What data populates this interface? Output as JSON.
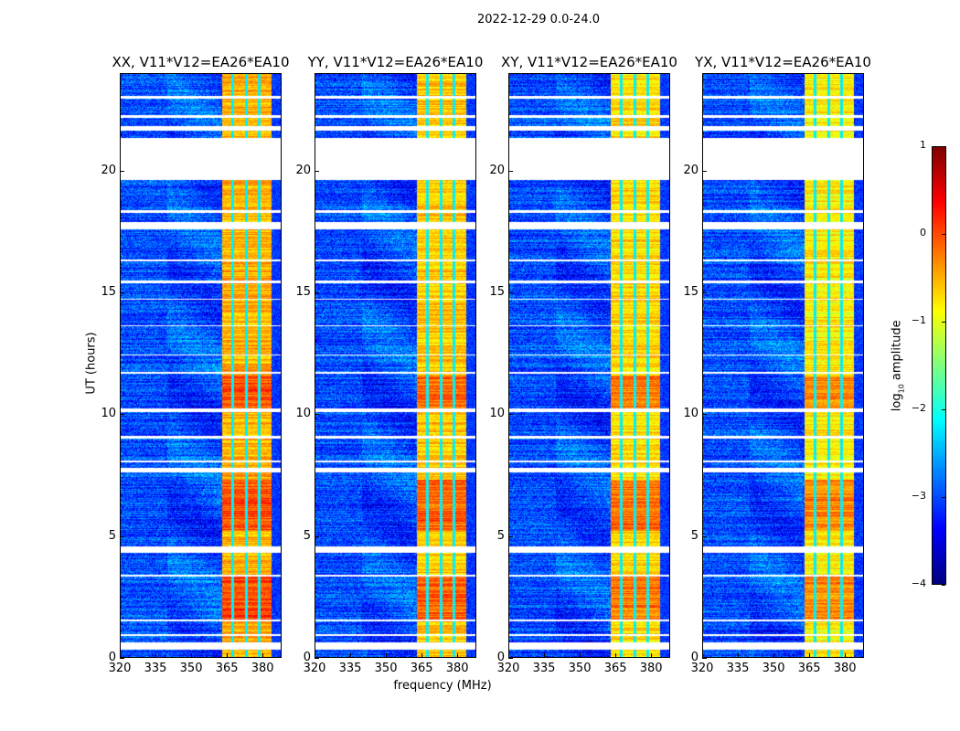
{
  "chart_data": {
    "type": "heatmap",
    "title": "2022-12-29 0.0-24.0",
    "xlabel": "frequency (MHz)",
    "ylabel": "UT (hours)",
    "xlim": [
      320,
      388
    ],
    "ylim": [
      0,
      24
    ],
    "xticks": [
      "320",
      "335",
      "350",
      "365",
      "380"
    ],
    "xtick_values": [
      320,
      335,
      350,
      365,
      380
    ],
    "yticks": [
      "0",
      "5",
      "10",
      "15",
      "20"
    ],
    "ytick_values": [
      0,
      5,
      10,
      15,
      20
    ],
    "colormap": "jet",
    "colorbar": {
      "label": "log10 amplitude",
      "label_main": "log",
      "label_sub": "10",
      "label_rest": " amplitude",
      "range": [
        -4,
        1
      ],
      "ticks": [
        "1",
        "0",
        "−1",
        "−2",
        "−3",
        "−4"
      ],
      "tick_values": [
        1,
        0,
        -1,
        -2,
        -3,
        -4
      ]
    },
    "panels": [
      {
        "title": "XX, V11*V12=EA26*EA10",
        "band_level": -0.5
      },
      {
        "title": "YY, V11*V12=EA26*EA10",
        "band_level": -0.6
      },
      {
        "title": "XY, V11*V12=EA26*EA10",
        "band_level": -0.7
      },
      {
        "title": "YX, V11*V12=EA26*EA10",
        "band_level": -0.8
      }
    ],
    "background_level": -3.0,
    "bright_band_mhz": [
      363,
      384
    ],
    "band_notches_mhz": [
      367.7,
      373.5,
      378.8
    ],
    "strong_time_ranges_hours": [
      [
        10.2,
        11.6
      ],
      [
        1.5,
        3.3
      ],
      [
        5.2,
        7.3
      ]
    ],
    "flagged_time_ranges_hours": [
      [
        19.65,
        21.35
      ],
      [
        21.65,
        21.85
      ],
      [
        22.2,
        22.3
      ],
      [
        4.3,
        4.55
      ],
      [
        0.3,
        0.6
      ],
      [
        0.85,
        0.95
      ],
      [
        1.45,
        1.55
      ],
      [
        3.3,
        3.4
      ],
      [
        7.6,
        7.8
      ],
      [
        8.0,
        8.1
      ],
      [
        9.0,
        9.1
      ],
      [
        10.1,
        10.25
      ],
      [
        11.65,
        11.75
      ],
      [
        15.4,
        15.5
      ],
      [
        17.6,
        17.9
      ],
      [
        18.3,
        18.4
      ],
      [
        12.4,
        12.45
      ],
      [
        13.6,
        13.65
      ],
      [
        14.7,
        14.75
      ],
      [
        16.3,
        16.35
      ],
      [
        23.0,
        23.1
      ]
    ]
  }
}
